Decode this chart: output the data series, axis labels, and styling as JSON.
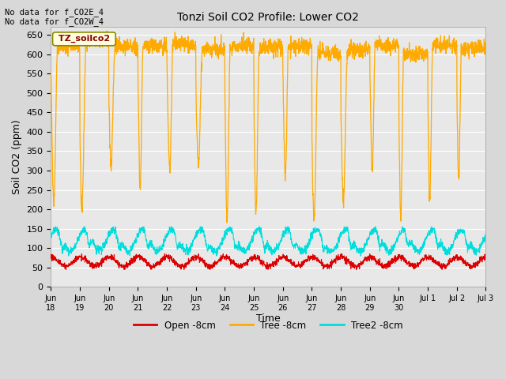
{
  "title": "Tonzi Soil CO2 Profile: Lower CO2",
  "ylabel": "Soil CO2 (ppm)",
  "xlabel": "Time",
  "top_text": "No data for f_CO2E_4\nNo data for f_CO2W_4",
  "legend_label": "TZ_soilco2",
  "ylim": [
    0,
    670
  ],
  "yticks": [
    0,
    50,
    100,
    150,
    200,
    250,
    300,
    350,
    400,
    450,
    500,
    550,
    600,
    650
  ],
  "fig_bg_color": "#d8d8d8",
  "plot_bg_color": "#e8e8e8",
  "grid_color": "#ffffff",
  "open_color": "#dd0000",
  "tree_color": "#ffaa00",
  "tree2_color": "#00dddd",
  "n_days": 15,
  "ppd": 144,
  "open_mean": 65,
  "open_amp": 12,
  "tree2_mean": 120,
  "tree2_amp": 28,
  "figwidth": 6.4,
  "figheight": 4.8,
  "dpi": 100
}
